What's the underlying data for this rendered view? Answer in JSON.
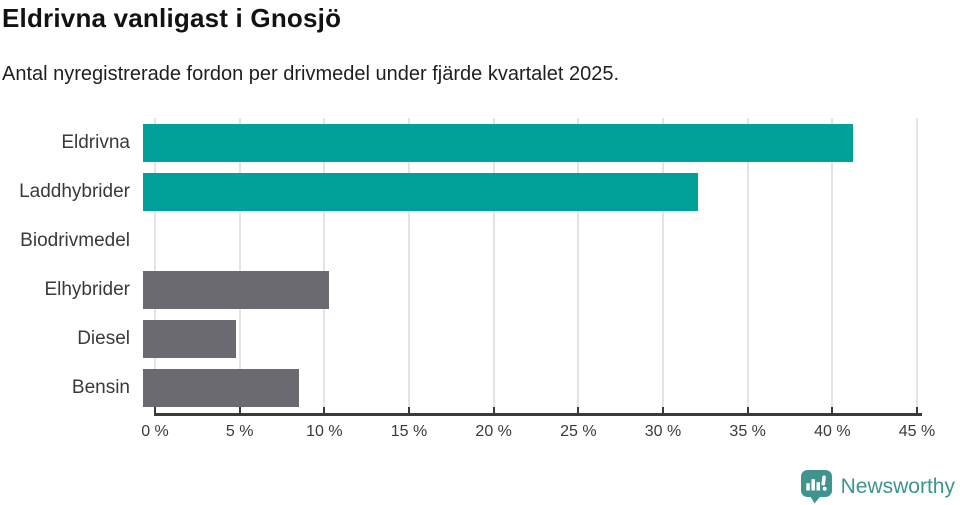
{
  "header": {
    "title": "Eldrivna vanligast i Gnosjö",
    "subtitle": "Antal nyregistrerade fordon per drivmedel under fjärde kvartalet 2025."
  },
  "chart_data": {
    "type": "bar",
    "orientation": "horizontal",
    "title": "Eldrivna vanligast i Gnosjö",
    "subtitle": "Antal nyregistrerade fordon per drivmedel under fjärde kvartalet 2025.",
    "categories": [
      "Eldrivna",
      "Laddhybrider",
      "Biodrivmedel",
      "Elhybrider",
      "Diesel",
      "Bensin"
    ],
    "values": [
      41.9,
      32.8,
      0,
      11.0,
      5.5,
      9.2
    ],
    "unit": "%",
    "xlim": [
      0,
      45
    ],
    "x_tick_values": [
      0,
      5,
      10,
      15,
      20,
      25,
      30,
      35,
      40,
      45
    ],
    "x_tick_labels": [
      "0 %",
      "5 %",
      "10 %",
      "15 %",
      "20 %",
      "25 %",
      "30 %",
      "35 %",
      "40 %",
      "45 %"
    ],
    "bar_colors": [
      "#00a298",
      "#00a298",
      "#6a6a70",
      "#6a6a70",
      "#6a6a70",
      "#6a6a70"
    ],
    "grid": true,
    "gridline_color": "#e4e4e7",
    "axis_color": "#3a3a3a",
    "legend": "none"
  },
  "branding": {
    "logo_label": "Newsworthy",
    "logo_icon": "newsworthy-speech-bubble-bar-chart-icon",
    "logo_color": "#3f948e"
  },
  "colors": {
    "accent_teal": "#00a298",
    "neutral_gray": "#6a6a70",
    "axis_text": "#3a3a3a",
    "background": "#ffffff"
  }
}
